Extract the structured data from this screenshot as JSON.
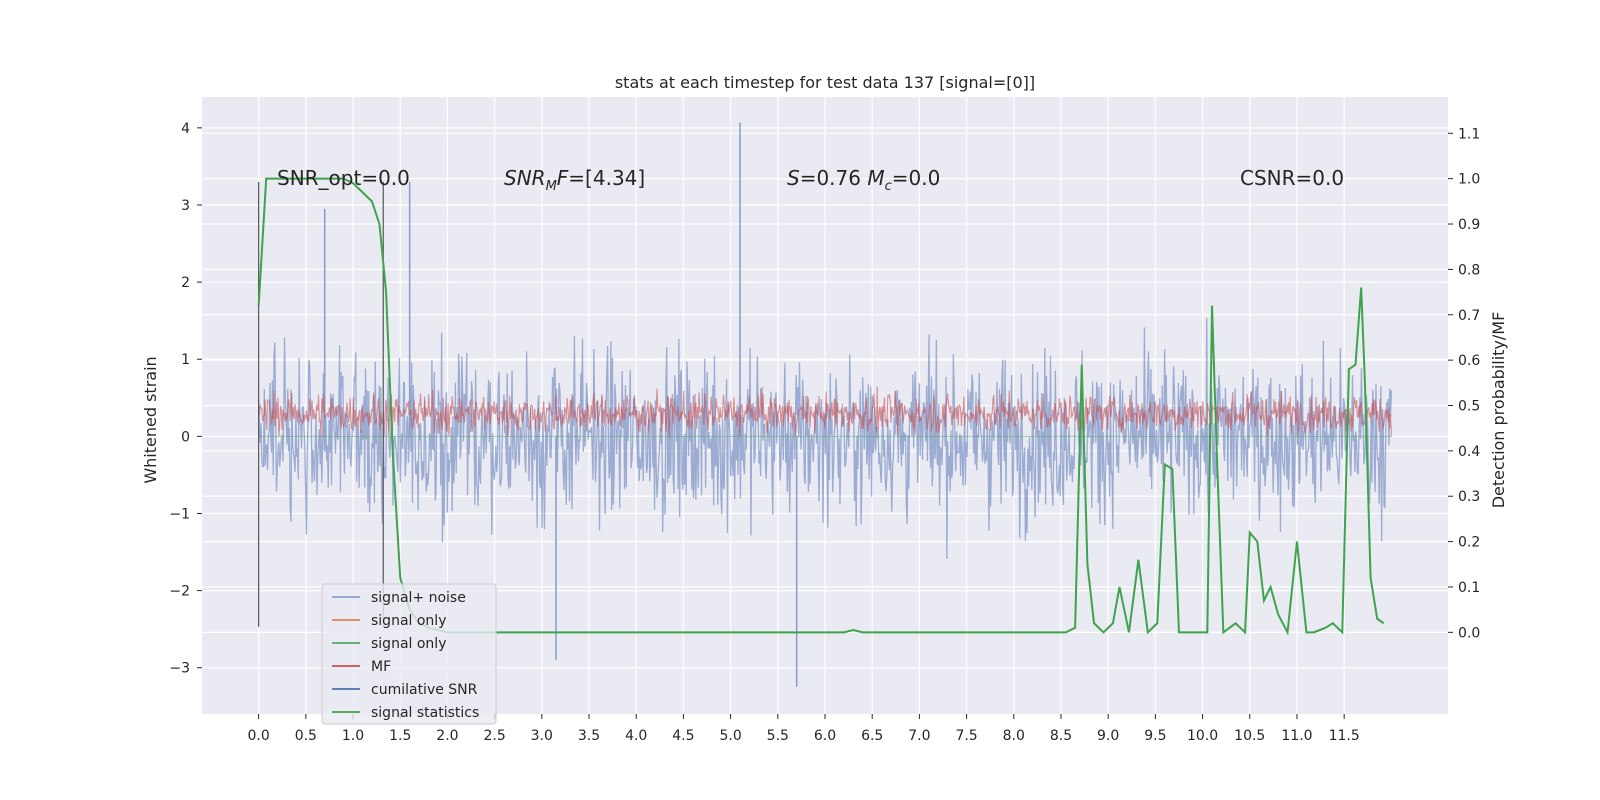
{
  "chart_data": {
    "type": "line",
    "title": "stats at each timestep for test data 137 [signal=[0]]",
    "xlabel": "",
    "ylabel": "Whitened strain",
    "y2label": "Detection probability/MF",
    "xlim": [
      -0.6,
      12.6
    ],
    "ylim": [
      -3.6,
      4.4
    ],
    "y2lim": [
      -0.18,
      1.18
    ],
    "x_ticks": [
      "0.0",
      "0.5",
      "1.0",
      "1.5",
      "2.0",
      "2.5",
      "3.0",
      "3.5",
      "4.0",
      "4.5",
      "5.0",
      "5.5",
      "6.0",
      "6.5",
      "7.0",
      "7.5",
      "8.0",
      "8.5",
      "9.0",
      "9.5",
      "10.0",
      "10.5",
      "11.0",
      "11.5"
    ],
    "y_ticks": [
      "4",
      "3",
      "2",
      "1",
      "0",
      "−1",
      "−2",
      "−3"
    ],
    "y2_ticks": [
      "1.1",
      "1.0",
      "0.9",
      "0.8",
      "0.7",
      "0.6",
      "0.5",
      "0.4",
      "0.3",
      "0.2",
      "0.1",
      "0.0"
    ],
    "grid": true,
    "legend_position": "lower-left",
    "legend": [
      {
        "label": "signal+ noise",
        "color": "#8da0cb"
      },
      {
        "label": "signal only",
        "color": "#dd8452"
      },
      {
        "label": "signal only",
        "color": "#55a868"
      },
      {
        "label": "MF",
        "color": "#c44e52"
      },
      {
        "label": "cumilative SNR",
        "color": "#4c72b0"
      },
      {
        "label": "signal statistics",
        "color": "#3fa34d"
      }
    ],
    "annotations": [
      {
        "text": "SNR_opt=0.0"
      },
      {
        "text": "SNR_MF=[4.34]"
      },
      {
        "text": "S=0.76   M_c=0.0"
      },
      {
        "text": "CSNR=0.0"
      }
    ],
    "vertical_lines_x": [
      0.0,
      1.32
    ],
    "series": [
      {
        "name": "signal+ noise",
        "axis": "left",
        "x_range": [
          0.0,
          12.0
        ],
        "typical_range": [
          -1.5,
          1.5
        ],
        "notable_peaks": [
          [
            5.1,
            4.07
          ],
          [
            5.7,
            -3.25
          ],
          [
            3.15,
            -2.9
          ],
          [
            1.6,
            3.3
          ],
          [
            0.7,
            2.95
          ]
        ]
      },
      {
        "name": "MF",
        "axis": "left",
        "x_range": [
          0.0,
          12.0
        ],
        "typical_range": [
          0.0,
          0.6
        ]
      },
      {
        "name": "signal statistics",
        "axis": "right",
        "x": [
          0.0,
          0.08,
          0.15,
          0.3,
          0.6,
          0.9,
          1.0,
          1.1,
          1.2,
          1.28,
          1.35,
          1.42,
          1.5,
          1.6,
          1.7,
          1.8,
          2.0,
          2.5,
          6.2,
          6.3,
          6.4,
          8.55,
          8.65,
          8.72,
          8.78,
          8.85,
          8.95,
          9.05,
          9.12,
          9.22,
          9.32,
          9.42,
          9.52,
          9.6,
          9.68,
          9.75,
          9.82,
          9.9,
          10.05,
          10.1,
          10.15,
          10.22,
          10.35,
          10.45,
          10.5,
          10.58,
          10.65,
          10.72,
          10.8,
          10.9,
          11.0,
          11.1,
          11.18,
          11.3,
          11.38,
          11.48,
          11.55,
          11.62,
          11.68,
          11.72,
          11.78,
          11.85,
          11.92
        ],
        "y": [
          0.72,
          1.0,
          1.0,
          1.0,
          1.0,
          1.0,
          0.99,
          0.97,
          0.95,
          0.9,
          0.75,
          0.4,
          0.12,
          0.05,
          0.02,
          0.01,
          0.0,
          0.0,
          0.0,
          0.005,
          0.0,
          0.0,
          0.01,
          0.59,
          0.15,
          0.02,
          0.0,
          0.02,
          0.1,
          0.0,
          0.16,
          0.0,
          0.02,
          0.37,
          0.36,
          0.0,
          0.0,
          0.0,
          0.0,
          0.72,
          0.4,
          0.0,
          0.02,
          0.0,
          0.22,
          0.2,
          0.07,
          0.1,
          0.04,
          0.0,
          0.2,
          0.0,
          0.0,
          0.01,
          0.02,
          0.0,
          0.58,
          0.59,
          0.76,
          0.55,
          0.12,
          0.03,
          0.02
        ]
      }
    ]
  }
}
